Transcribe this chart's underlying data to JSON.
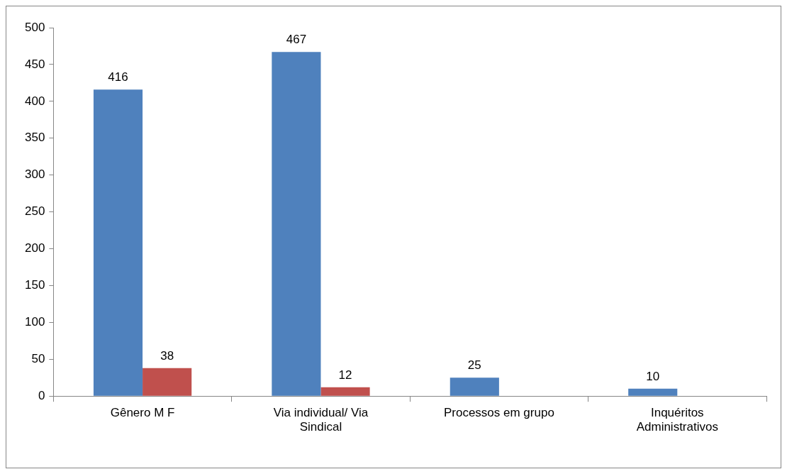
{
  "chart_data": {
    "type": "bar",
    "categories": [
      "Gênero M F",
      "Via individual/ Via Sindical",
      "Processos em grupo",
      "Inquéritos Administrativos"
    ],
    "series": [
      {
        "color": "#4f81bd",
        "values": [
          416,
          467,
          25,
          10
        ]
      },
      {
        "color": "#c0504d",
        "values": [
          38,
          12,
          null,
          null
        ]
      }
    ],
    "ylim": [
      0,
      500
    ],
    "yticks": [
      0,
      50,
      100,
      150,
      200,
      250,
      300,
      350,
      400,
      450,
      500
    ],
    "grid": false,
    "legend": false,
    "data_labels": true
  }
}
